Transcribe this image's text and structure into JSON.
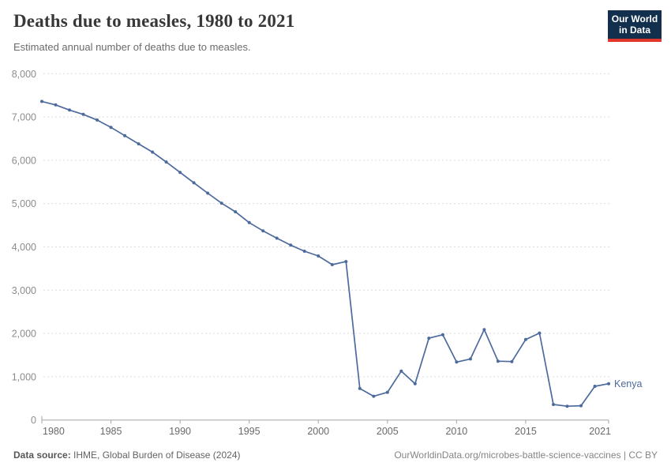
{
  "header": {
    "title": "Deaths due to measles, 1980 to 2021",
    "subtitle": "Estimated annual number of deaths due to measles.",
    "logo": {
      "line1": "Our World",
      "line2": "in Data"
    }
  },
  "chart_data": {
    "type": "line",
    "title": "Deaths due to measles, 1980 to 2021",
    "xlabel": "",
    "ylabel": "",
    "ylim": [
      0,
      8000
    ],
    "grid": "horizontal-dashed",
    "legend_position": "end-of-line",
    "yticks": [
      0,
      1000,
      2000,
      3000,
      4000,
      5000,
      6000,
      7000,
      8000
    ],
    "ytick_labels": [
      "0",
      "1,000",
      "2,000",
      "3,000",
      "4,000",
      "5,000",
      "6,000",
      "7,000",
      "8,000"
    ],
    "xticks": [
      1980,
      1985,
      1990,
      1995,
      2000,
      2005,
      2010,
      2015,
      2021
    ],
    "xtick_labels": [
      "1980",
      "1985",
      "1990",
      "1995",
      "2000",
      "2005",
      "2010",
      "2015",
      "2021"
    ],
    "x": [
      1980,
      1981,
      1982,
      1983,
      1984,
      1985,
      1986,
      1987,
      1988,
      1989,
      1990,
      1991,
      1992,
      1993,
      1994,
      1995,
      1996,
      1997,
      1998,
      1999,
      2000,
      2001,
      2002,
      2003,
      2004,
      2005,
      2006,
      2007,
      2008,
      2009,
      2010,
      2011,
      2012,
      2013,
      2014,
      2015,
      2016,
      2017,
      2018,
      2019,
      2020,
      2021
    ],
    "series": [
      {
        "name": "Kenya",
        "color": "#4c6a9c",
        "values": [
          7360,
          7280,
          7160,
          7060,
          6930,
          6760,
          6570,
          6380,
          6190,
          5960,
          5720,
          5480,
          5240,
          5010,
          4810,
          4560,
          4370,
          4200,
          4040,
          3900,
          3790,
          3590,
          3660,
          730,
          550,
          640,
          1130,
          840,
          1890,
          1970,
          1340,
          1410,
          2090,
          1360,
          1350,
          1860,
          2010,
          360,
          320,
          330,
          780,
          840
        ]
      }
    ]
  },
  "colors": {
    "line": "#4c6a9c",
    "gridline": "#dcdcdc",
    "axis": "#a6a6a6",
    "ytick_text": "#8c8c8c",
    "xtick_text": "#696969",
    "logo_bg": "#12304e",
    "logo_stripe": "#e0362c"
  },
  "footer": {
    "source_label": "Data source:",
    "source_text": "IHME, Global Burden of Disease (2024)",
    "credit": "OurWorldinData.org/microbes-battle-science-vaccines | CC BY"
  }
}
